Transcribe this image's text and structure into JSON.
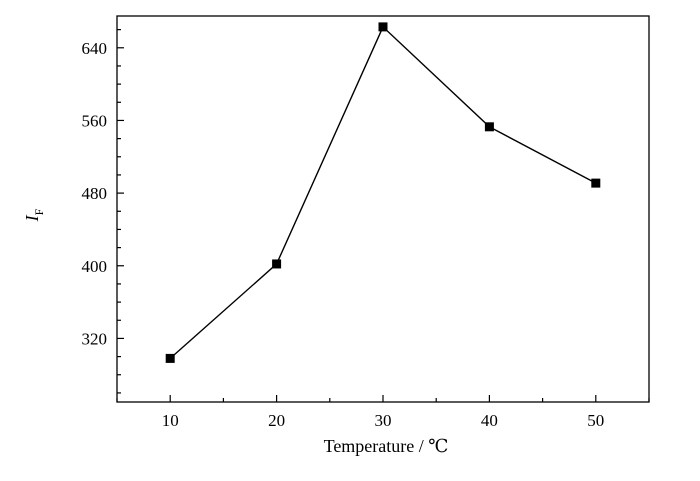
{
  "chart_data": {
    "type": "line",
    "x": [
      10,
      20,
      30,
      40,
      50
    ],
    "y": [
      298,
      402,
      663,
      553,
      491
    ],
    "xlabel": "Temperature / ℃",
    "ylabel": "I",
    "ylabel_sub": "F",
    "xlim": [
      5,
      55
    ],
    "ylim": [
      250,
      675
    ],
    "xticks": [
      10,
      20,
      30,
      40,
      50
    ],
    "yticks": [
      320,
      400,
      480,
      560,
      640
    ],
    "marker": "square",
    "line_color": "#000000",
    "grid": false,
    "legend": "none"
  }
}
